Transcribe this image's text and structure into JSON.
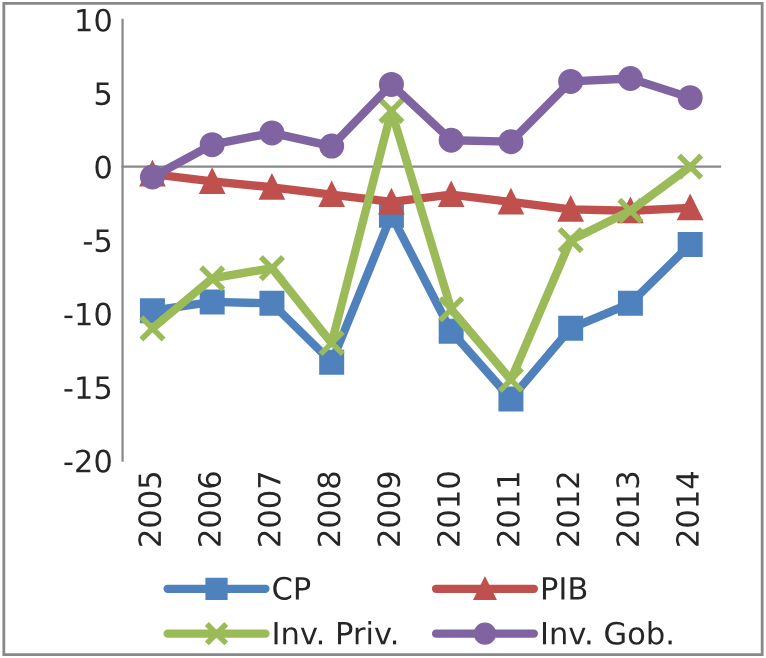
{
  "chart_data": {
    "type": "line",
    "categories": [
      "2005",
      "2006",
      "2007",
      "2008",
      "2009",
      "2010",
      "2011",
      "2012",
      "2013",
      "2014"
    ],
    "series": [
      {
        "name": "CP",
        "color": "#4f81bd",
        "marker": "square",
        "values": [
          -9.8,
          -9.2,
          -9.3,
          -13.3,
          -3.3,
          -11.2,
          -15.8,
          -11,
          -9.3,
          -5.3
        ]
      },
      {
        "name": "PIB",
        "color": "#c0504d",
        "marker": "triangle",
        "values": [
          -0.5,
          -1,
          -1.4,
          -1.9,
          -2.4,
          -1.9,
          -2.4,
          -2.9,
          -3,
          -2.8
        ]
      },
      {
        "name": "Inv. Priv.",
        "color": "#9bbb59",
        "marker": "cross",
        "values": [
          -11,
          -7.6,
          -6.9,
          -12,
          3.8,
          -9.7,
          -14.5,
          -5,
          -3,
          0
        ]
      },
      {
        "name": "Inv. Gob.",
        "color": "#8064a2",
        "marker": "circle",
        "values": [
          -0.7,
          1.5,
          2.3,
          1.4,
          5.6,
          1.8,
          1.7,
          5.8,
          6,
          4.7
        ]
      }
    ],
    "ylim": [
      -20,
      10
    ],
    "yticks": [
      -20,
      -15,
      -10,
      -5,
      0,
      5,
      10
    ],
    "legend": "bottom",
    "line_style": "solid"
  }
}
